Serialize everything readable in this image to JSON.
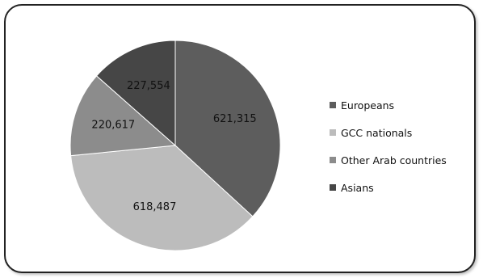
{
  "chart_data": {
    "type": "pie",
    "title": "",
    "categories": [
      "Europeans",
      "GCC nationals",
      "Other Arab countries",
      "Asians"
    ],
    "values": [
      621315,
      618487,
      220617,
      227554
    ],
    "data_labels": [
      "621,315",
      "618,487",
      "220,617",
      "227,554"
    ],
    "colors": [
      "#5d5d5d",
      "#bcbcbc",
      "#8c8c8c",
      "#464646"
    ],
    "start_angle_deg": 0,
    "direction": "clockwise",
    "legend_position": "right",
    "slice_border_color": "#ffffff"
  }
}
